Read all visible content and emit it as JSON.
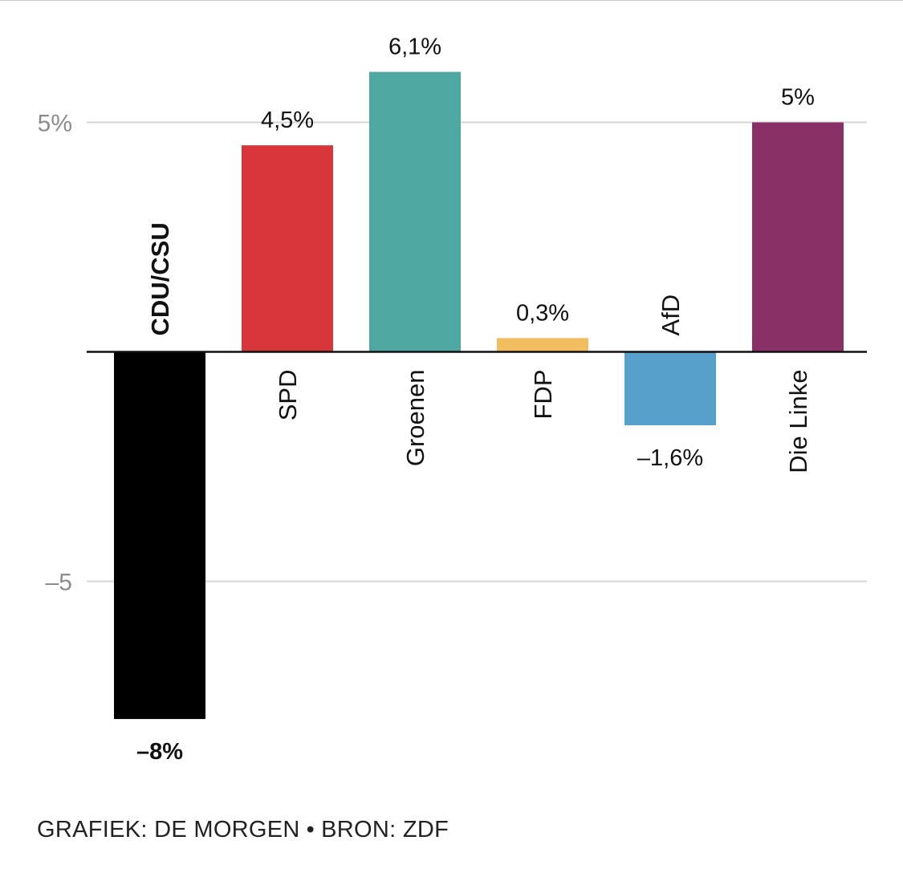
{
  "chart_data": {
    "type": "bar",
    "categories": [
      "CDU/CSU",
      "SPD",
      "Groenen",
      "FDP",
      "AfD",
      "Die Linke"
    ],
    "values": [
      -8,
      4.5,
      6.1,
      0.3,
      -1.6,
      5
    ],
    "value_labels": [
      "–8%",
      "4,5%",
      "6,1%",
      "0,3%",
      "–1,6%",
      "5%"
    ],
    "colors": [
      "#000000",
      "#d9363b",
      "#4ea8a1",
      "#f2bd5f",
      "#57a0cc",
      "#8a3068"
    ],
    "highlight": "CDU/CSU",
    "y_ticks": [
      {
        "value": 5,
        "label": "5%"
      },
      {
        "value": -5,
        "label": "–5"
      }
    ],
    "ylim": [
      -8,
      6.1
    ],
    "grid": true,
    "title": "",
    "xlabel": "",
    "ylabel": ""
  },
  "footer": {
    "credit": "GRAFIEK: DE MORGEN",
    "separator": "•",
    "source": "BRON: ZDF"
  }
}
